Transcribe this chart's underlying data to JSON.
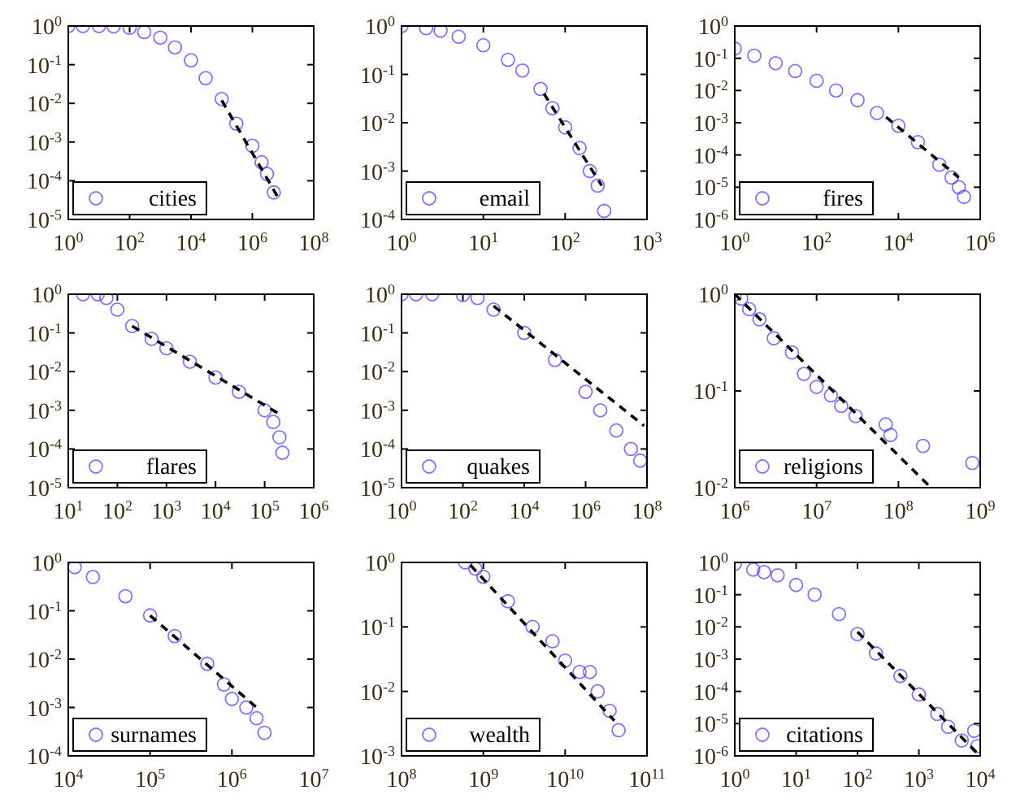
{
  "chart_data": [
    {
      "type": "scatter",
      "log": "xy",
      "marker": "circle",
      "legend": "bottom left",
      "xlim": [
        1,
        100000000.0
      ],
      "ylim": [
        1e-05,
        1
      ],
      "xticks": [
        {
          "value": 1,
          "label": "10$^{0}$"
        },
        {
          "value": 100,
          "label": "10$^{2}$"
        },
        {
          "value": 10000.0,
          "label": "10$^{4}$"
        },
        {
          "value": 1000000.0,
          "label": "10$^{6}$"
        },
        {
          "value": 100000000.0,
          "label": "10$^{8}$"
        }
      ],
      "yticks": [
        {
          "value": 1e-05,
          "label": "10$^{-5}$"
        },
        {
          "value": 0.0001,
          "label": "10$^{-4}$"
        },
        {
          "value": 0.001,
          "label": "10$^{-3}$"
        },
        {
          "value": 0.01,
          "label": "10$^{-2}$"
        },
        {
          "value": 0.1,
          "label": "10$^{-1}$"
        },
        {
          "value": 1,
          "label": "10$^{0}$"
        }
      ],
      "series": [
        {
          "name": "cities",
          "color": "#4040ff",
          "x": [
            1,
            3,
            10,
            30,
            100,
            300,
            1000.0,
            3000.0,
            10000.0,
            30000.0,
            100000.0,
            300000.0,
            1000000.0,
            2000000.0,
            3000000.0,
            5000000.0
          ],
          "values": [
            1,
            1,
            1,
            0.98,
            0.9,
            0.7,
            0.5,
            0.28,
            0.13,
            0.045,
            0.013,
            0.003,
            0.0008,
            0.0003,
            0.00015,
            5e-05
          ]
        },
        {
          "type": "line",
          "line_style": "dashed",
          "marker": "none",
          "color": "#000000",
          "x": [
            100000.0,
            8000000.0
          ],
          "values": [
            0.012,
            3e-05
          ]
        }
      ]
    },
    {
      "type": "scatter",
      "log": "xy",
      "marker": "circle",
      "legend": "bottom left",
      "xlim": [
        1,
        1000
      ],
      "ylim": [
        0.0001,
        1
      ],
      "xticks": [
        {
          "value": 1,
          "label": "10$^{0}$"
        },
        {
          "value": 10,
          "label": "10$^{1}$"
        },
        {
          "value": 100,
          "label": "10$^{2}$"
        },
        {
          "value": 1000,
          "label": "10$^{3}$"
        }
      ],
      "yticks": [
        {
          "value": 0.0001,
          "label": "10$^{-4}$"
        },
        {
          "value": 0.001,
          "label": "10$^{-3}$"
        },
        {
          "value": 0.01,
          "label": "10$^{-2}$"
        },
        {
          "value": 0.1,
          "label": "10$^{-1}$"
        },
        {
          "value": 1,
          "label": "10$^{0}$"
        }
      ],
      "series": [
        {
          "name": "email",
          "color": "#4040ff",
          "x": [
            1,
            2,
            3,
            5,
            10,
            20,
            30,
            50,
            70,
            100,
            150,
            200,
            250,
            300
          ],
          "values": [
            1,
            0.9,
            0.8,
            0.6,
            0.4,
            0.2,
            0.12,
            0.05,
            0.02,
            0.008,
            0.003,
            0.001,
            0.0005,
            0.00015
          ]
        },
        {
          "type": "line",
          "line_style": "dashed",
          "marker": "none",
          "color": "#000000",
          "x": [
            55,
            280
          ],
          "values": [
            0.04,
            0.0005
          ]
        }
      ]
    },
    {
      "type": "scatter",
      "log": "xy",
      "marker": "circle",
      "legend": "bottom left",
      "xlim": [
        1,
        1000000.0
      ],
      "ylim": [
        1e-06,
        1
      ],
      "xticks": [
        {
          "value": 1,
          "label": "10$^{0}$"
        },
        {
          "value": 100,
          "label": "10$^{2}$"
        },
        {
          "value": 10000.0,
          "label": "10$^{4}$"
        },
        {
          "value": 1000000.0,
          "label": "10$^{6}$"
        }
      ],
      "yticks": [
        {
          "value": 1e-06,
          "label": "10$^{-6}$"
        },
        {
          "value": 1e-05,
          "label": "10$^{-5}$"
        },
        {
          "value": 0.0001,
          "label": "10$^{-4}$"
        },
        {
          "value": 0.001,
          "label": "10$^{-3}$"
        },
        {
          "value": 0.01,
          "label": "10$^{-2}$"
        },
        {
          "value": 0.1,
          "label": "10$^{-1}$"
        },
        {
          "value": 1,
          "label": "10$^{0}$"
        }
      ],
      "series": [
        {
          "name": "fires",
          "color": "#4040ff",
          "x": [
            1,
            3,
            10,
            30,
            100,
            300,
            1000.0,
            3000.0,
            10000.0,
            30000.0,
            100000.0,
            200000.0,
            300000.0,
            400000.0
          ],
          "values": [
            0.2,
            0.12,
            0.07,
            0.04,
            0.02,
            0.01,
            0.005,
            0.002,
            0.0008,
            0.00025,
            5e-05,
            2e-05,
            1e-05,
            5e-06
          ]
        },
        {
          "type": "line",
          "line_style": "dashed",
          "marker": "none",
          "color": "#000000",
          "x": [
            5000.0,
            300000.0
          ],
          "values": [
            0.0015,
            2e-05
          ]
        }
      ]
    },
    {
      "type": "scatter",
      "log": "xy",
      "marker": "circle",
      "legend": "bottom left",
      "xlim": [
        10,
        1000000.0
      ],
      "ylim": [
        1e-05,
        1
      ],
      "xticks": [
        {
          "value": 10,
          "label": "10$^{1}$"
        },
        {
          "value": 100,
          "label": "10$^{2}$"
        },
        {
          "value": 1000.0,
          "label": "10$^{3}$"
        },
        {
          "value": 10000.0,
          "label": "10$^{4}$"
        },
        {
          "value": 100000.0,
          "label": "10$^{5}$"
        },
        {
          "value": 1000000.0,
          "label": "10$^{6}$"
        }
      ],
      "yticks": [
        {
          "value": 1e-05,
          "label": "10$^{-5}$"
        },
        {
          "value": 0.0001,
          "label": "10$^{-4}$"
        },
        {
          "value": 0.001,
          "label": "10$^{-3}$"
        },
        {
          "value": 0.01,
          "label": "10$^{-2}$"
        },
        {
          "value": 0.1,
          "label": "10$^{-1}$"
        },
        {
          "value": 1,
          "label": "10$^{0}$"
        }
      ],
      "series": [
        {
          "name": "flares",
          "color": "#4040ff",
          "x": [
            20,
            40,
            60,
            100,
            200,
            500,
            1000.0,
            3000.0,
            10000.0,
            30000.0,
            100000.0,
            150000.0,
            200000.0,
            230000.0
          ],
          "values": [
            1,
            1,
            0.8,
            0.4,
            0.15,
            0.07,
            0.04,
            0.018,
            0.007,
            0.003,
            0.001,
            0.0005,
            0.0002,
            8e-05
          ]
        },
        {
          "type": "line",
          "line_style": "dashed",
          "marker": "none",
          "color": "#000000",
          "x": [
            200,
            200000.0
          ],
          "values": [
            0.15,
            0.0008
          ]
        }
      ]
    },
    {
      "type": "scatter",
      "log": "xy",
      "marker": "circle",
      "legend": "bottom left",
      "xlim": [
        1,
        100000000.0
      ],
      "ylim": [
        1e-05,
        1
      ],
      "xticks": [
        {
          "value": 1,
          "label": "10$^{0}$"
        },
        {
          "value": 100,
          "label": "10$^{2}$"
        },
        {
          "value": 10000.0,
          "label": "10$^{4}$"
        },
        {
          "value": 1000000.0,
          "label": "10$^{6}$"
        },
        {
          "value": 100000000.0,
          "label": "10$^{8}$"
        }
      ],
      "yticks": [
        {
          "value": 1e-05,
          "label": "10$^{-5}$"
        },
        {
          "value": 0.0001,
          "label": "10$^{-4}$"
        },
        {
          "value": 0.001,
          "label": "10$^{-3}$"
        },
        {
          "value": 0.01,
          "label": "10$^{-2}$"
        },
        {
          "value": 0.1,
          "label": "10$^{-1}$"
        },
        {
          "value": 1,
          "label": "10$^{0}$"
        }
      ],
      "series": [
        {
          "name": "quakes",
          "color": "#4040ff",
          "x": [
            1,
            3,
            10,
            100,
            300,
            1000.0,
            10000.0,
            100000.0,
            1000000.0,
            3000000.0,
            10000000.0,
            30000000.0,
            60000000.0
          ],
          "values": [
            1,
            1,
            1,
            0.95,
            0.8,
            0.4,
            0.1,
            0.02,
            0.003,
            0.001,
            0.0003,
            0.0001,
            5e-05
          ]
        },
        {
          "type": "line",
          "line_style": "dashed",
          "marker": "none",
          "color": "#000000",
          "x": [
            1000.0,
            80000000.0
          ],
          "values": [
            0.5,
            0.0004
          ]
        }
      ]
    },
    {
      "type": "scatter",
      "log": "xy",
      "marker": "circle",
      "legend": "bottom left",
      "xlim": [
        1000000.0,
        1000000000.0
      ],
      "ylim": [
        0.01,
        1
      ],
      "xticks": [
        {
          "value": 1000000.0,
          "label": "10$^{6}$"
        },
        {
          "value": 10000000.0,
          "label": "10$^{7}$"
        },
        {
          "value": 100000000.0,
          "label": "10$^{8}$"
        },
        {
          "value": 1000000000.0,
          "label": "10$^{9}$"
        }
      ],
      "yticks": [
        {
          "value": 0.01,
          "label": "10$^{-2}$"
        },
        {
          "value": 0.1,
          "label": "10$^{-1}$"
        },
        {
          "value": 1,
          "label": "10$^{0}$"
        }
      ],
      "series": [
        {
          "name": "religions",
          "color": "#4040ff",
          "x": [
            1000000.0,
            1200000.0,
            1500000.0,
            2000000.0,
            3000000.0,
            5000000.0,
            7000000.0,
            10000000.0,
            15000000.0,
            20000000.0,
            30000000.0,
            70000000.0,
            80000000.0,
            200000000.0,
            800000000.0
          ],
          "values": [
            1,
            0.9,
            0.7,
            0.55,
            0.35,
            0.25,
            0.15,
            0.11,
            0.09,
            0.07,
            0.055,
            0.045,
            0.035,
            0.027,
            0.018
          ]
        },
        {
          "type": "line",
          "line_style": "dashed",
          "marker": "none",
          "color": "#000000",
          "x": [
            1000000.0,
            250000000.0
          ],
          "values": [
            1,
            0.01
          ]
        }
      ]
    },
    {
      "type": "scatter",
      "log": "xy",
      "marker": "circle",
      "legend": "bottom left",
      "xlim": [
        10000.0,
        10000000.0
      ],
      "ylim": [
        0.0001,
        1
      ],
      "xticks": [
        {
          "value": 10000.0,
          "label": "10$^{4}$"
        },
        {
          "value": 100000.0,
          "label": "10$^{5}$"
        },
        {
          "value": 1000000.0,
          "label": "10$^{6}$"
        },
        {
          "value": 10000000.0,
          "label": "10$^{7}$"
        }
      ],
      "yticks": [
        {
          "value": 0.0001,
          "label": "10$^{-4}$"
        },
        {
          "value": 0.001,
          "label": "10$^{-3}$"
        },
        {
          "value": 0.01,
          "label": "10$^{-2}$"
        },
        {
          "value": 0.1,
          "label": "10$^{-1}$"
        },
        {
          "value": 1,
          "label": "10$^{0}$"
        }
      ],
      "series": [
        {
          "name": "surnames",
          "color": "#4040ff",
          "x": [
            12000.0,
            20000.0,
            50000.0,
            100000.0,
            200000.0,
            500000.0,
            800000.0,
            1000000.0,
            1500000.0,
            2000000.0,
            2500000.0
          ],
          "values": [
            0.8,
            0.5,
            0.2,
            0.08,
            0.03,
            0.008,
            0.003,
            0.0015,
            0.001,
            0.0006,
            0.0003
          ]
        },
        {
          "type": "line",
          "line_style": "dashed",
          "marker": "none",
          "color": "#000000",
          "x": [
            100000.0,
            2000000.0
          ],
          "values": [
            0.08,
            0.001
          ]
        }
      ]
    },
    {
      "type": "scatter",
      "log": "xy",
      "marker": "circle",
      "legend": "bottom left",
      "xlim": [
        100000000.0,
        100000000000.0
      ],
      "ylim": [
        0.001,
        1
      ],
      "xticks": [
        {
          "value": 100000000.0,
          "label": "10$^{8}$"
        },
        {
          "value": 1000000000.0,
          "label": "10$^{9}$"
        },
        {
          "value": 10000000000.0,
          "label": "10$^{10}$"
        },
        {
          "value": 100000000000.0,
          "label": "10$^{11}$"
        }
      ],
      "yticks": [
        {
          "value": 0.001,
          "label": "10$^{-3}$"
        },
        {
          "value": 0.01,
          "label": "10$^{-2}$"
        },
        {
          "value": 0.1,
          "label": "10$^{-1}$"
        },
        {
          "value": 1,
          "label": "10$^{0}$"
        }
      ],
      "series": [
        {
          "name": "wealth",
          "color": "#4040ff",
          "x": [
            600000000.0,
            800000000.0,
            1000000000.0,
            2000000000.0,
            4000000000.0,
            7000000000.0,
            10000000000.0,
            15000000000.0,
            20000000000.0,
            25000000000.0,
            35000000000.0,
            45000000000.0
          ],
          "values": [
            1,
            0.8,
            0.6,
            0.25,
            0.1,
            0.06,
            0.03,
            0.02,
            0.02,
            0.01,
            0.005,
            0.0025
          ]
        },
        {
          "type": "line",
          "line_style": "dashed",
          "marker": "none",
          "color": "#000000",
          "x": [
            700000000.0,
            40000000000.0
          ],
          "values": [
            0.9,
            0.0035
          ]
        }
      ]
    },
    {
      "type": "scatter",
      "log": "xy",
      "marker": "circle",
      "legend": "bottom left",
      "xlim": [
        1,
        10000.0
      ],
      "ylim": [
        1e-06,
        1
      ],
      "xticks": [
        {
          "value": 1,
          "label": "10$^{0}$"
        },
        {
          "value": 10,
          "label": "10$^{1}$"
        },
        {
          "value": 100,
          "label": "10$^{2}$"
        },
        {
          "value": 1000.0,
          "label": "10$^{3}$"
        },
        {
          "value": 10000.0,
          "label": "10$^{4}$"
        }
      ],
      "yticks": [
        {
          "value": 1e-06,
          "label": "10$^{-6}$"
        },
        {
          "value": 1e-05,
          "label": "10$^{-5}$"
        },
        {
          "value": 0.0001,
          "label": "10$^{-4}$"
        },
        {
          "value": 0.001,
          "label": "10$^{-3}$"
        },
        {
          "value": 0.01,
          "label": "10$^{-2}$"
        },
        {
          "value": 0.1,
          "label": "10$^{-1}$"
        },
        {
          "value": 1,
          "label": "10$^{0}$"
        }
      ],
      "series": [
        {
          "name": "citations",
          "color": "#4040ff",
          "x": [
            1,
            2,
            3,
            5,
            10,
            20,
            50,
            100,
            200,
            500,
            1000.0,
            2000.0,
            3000.0,
            5000.0,
            8000.0,
            9000.0
          ],
          "values": [
            0.9,
            0.6,
            0.5,
            0.4,
            0.2,
            0.1,
            0.025,
            0.006,
            0.0015,
            0.0003,
            8e-05,
            2e-05,
            8e-06,
            3e-06,
            6e-06,
            2e-06
          ]
        },
        {
          "type": "line",
          "line_style": "dashed",
          "marker": "none",
          "color": "#000000",
          "x": [
            100,
            9000.0
          ],
          "values": [
            0.007,
            1.2e-06
          ]
        }
      ]
    }
  ]
}
